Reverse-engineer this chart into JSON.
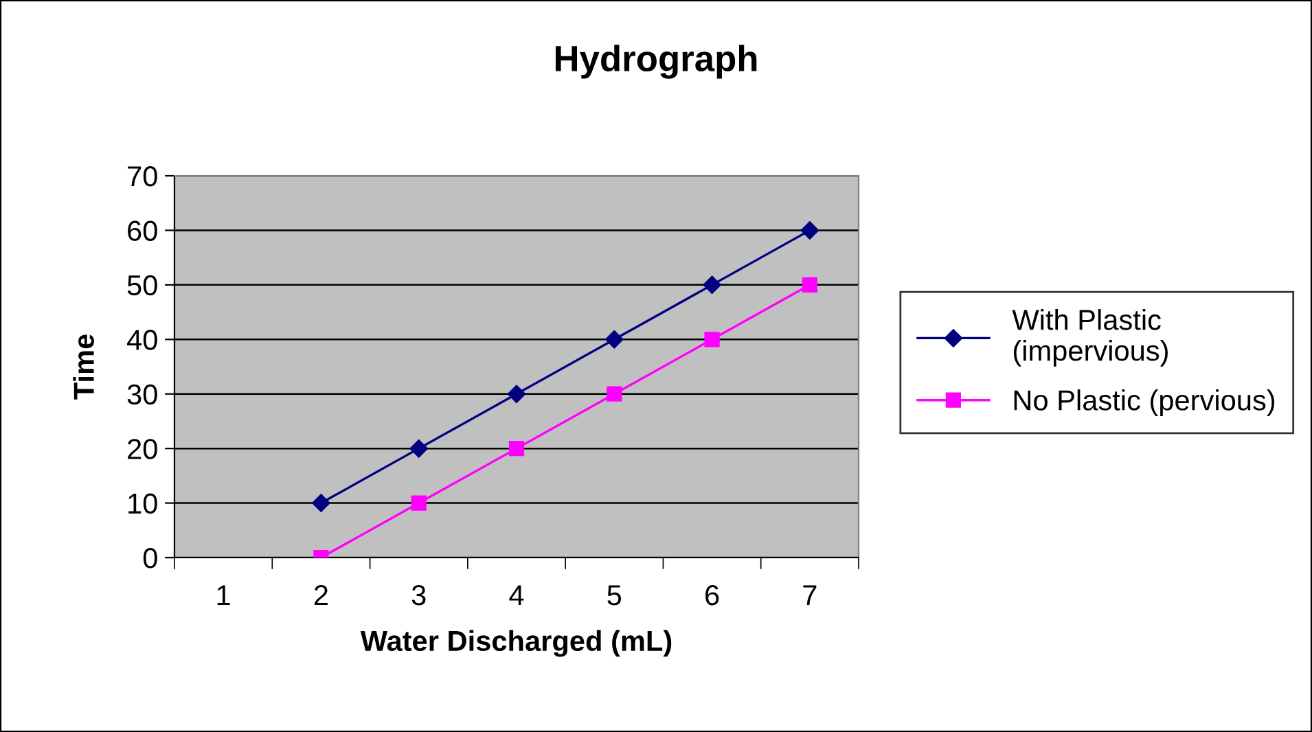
{
  "chart_data": {
    "type": "line",
    "title": "Hydrograph",
    "xlabel": "Water Discharged (mL)",
    "ylabel": "Time",
    "categories": [
      "1",
      "2",
      "3",
      "4",
      "5",
      "6",
      "7"
    ],
    "series": [
      {
        "name": "With Plastic\n(impervious)",
        "color": "#000080",
        "marker": "diamond",
        "values": [
          null,
          10,
          20,
          30,
          40,
          50,
          60
        ]
      },
      {
        "name": "No Plastic (pervious)",
        "color": "#ff00ff",
        "marker": "square",
        "values": [
          null,
          0,
          10,
          20,
          30,
          40,
          50
        ]
      }
    ],
    "ylim": [
      0,
      70
    ],
    "yticks": [
      0,
      10,
      20,
      30,
      40,
      50,
      60,
      70
    ],
    "grid": "y",
    "legend": "right",
    "line_style": "solid"
  }
}
